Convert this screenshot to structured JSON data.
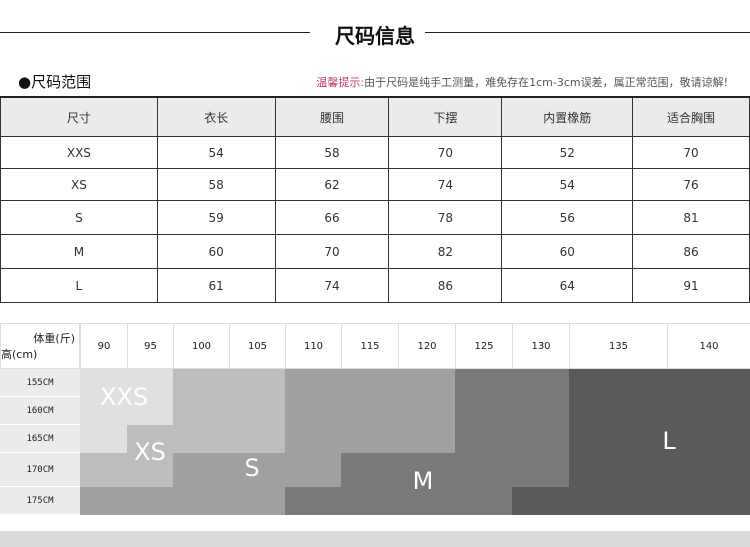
{
  "title": "尺码信息",
  "section": "●尺码范围",
  "tip": {
    "label": "温馨提示:",
    "text": "由于尺码是纯手工测量，难免存在1cm-3cm误差，属正常范围，敬请谅解!"
  },
  "table": {
    "headers": [
      "尺寸",
      "衣长",
      "腰围",
      "下摆",
      "内置橡筋",
      "适合胸围"
    ],
    "rows": [
      [
        "XXS",
        "54",
        "58",
        "70",
        "52",
        "70"
      ],
      [
        "XS",
        "58",
        "62",
        "74",
        "54",
        "76"
      ],
      [
        "S",
        "59",
        "66",
        "78",
        "56",
        "81"
      ],
      [
        "M",
        "60",
        "70",
        "82",
        "60",
        "86"
      ],
      [
        "L",
        "61",
        "74",
        "86",
        "64",
        "91"
      ]
    ]
  },
  "chart": {
    "weight_label": "体重(斤)",
    "height_label": "高(cm)",
    "weights": [
      "90",
      "95",
      "100",
      "105",
      "110",
      "115",
      "120",
      "125",
      "130",
      "135",
      "140"
    ],
    "heights": [
      "155CM",
      "160CM",
      "165CM",
      "170CM",
      "175CM"
    ],
    "sizes": [
      {
        "name": "XXS",
        "color": "#e0e0e0"
      },
      {
        "name": "XS",
        "color": "#bdbdbd"
      },
      {
        "name": "S",
        "color": "#a0a0a0"
      },
      {
        "name": "M",
        "color": "#7a7a7a"
      },
      {
        "name": "L",
        "color": "#5a5a5a"
      }
    ]
  }
}
